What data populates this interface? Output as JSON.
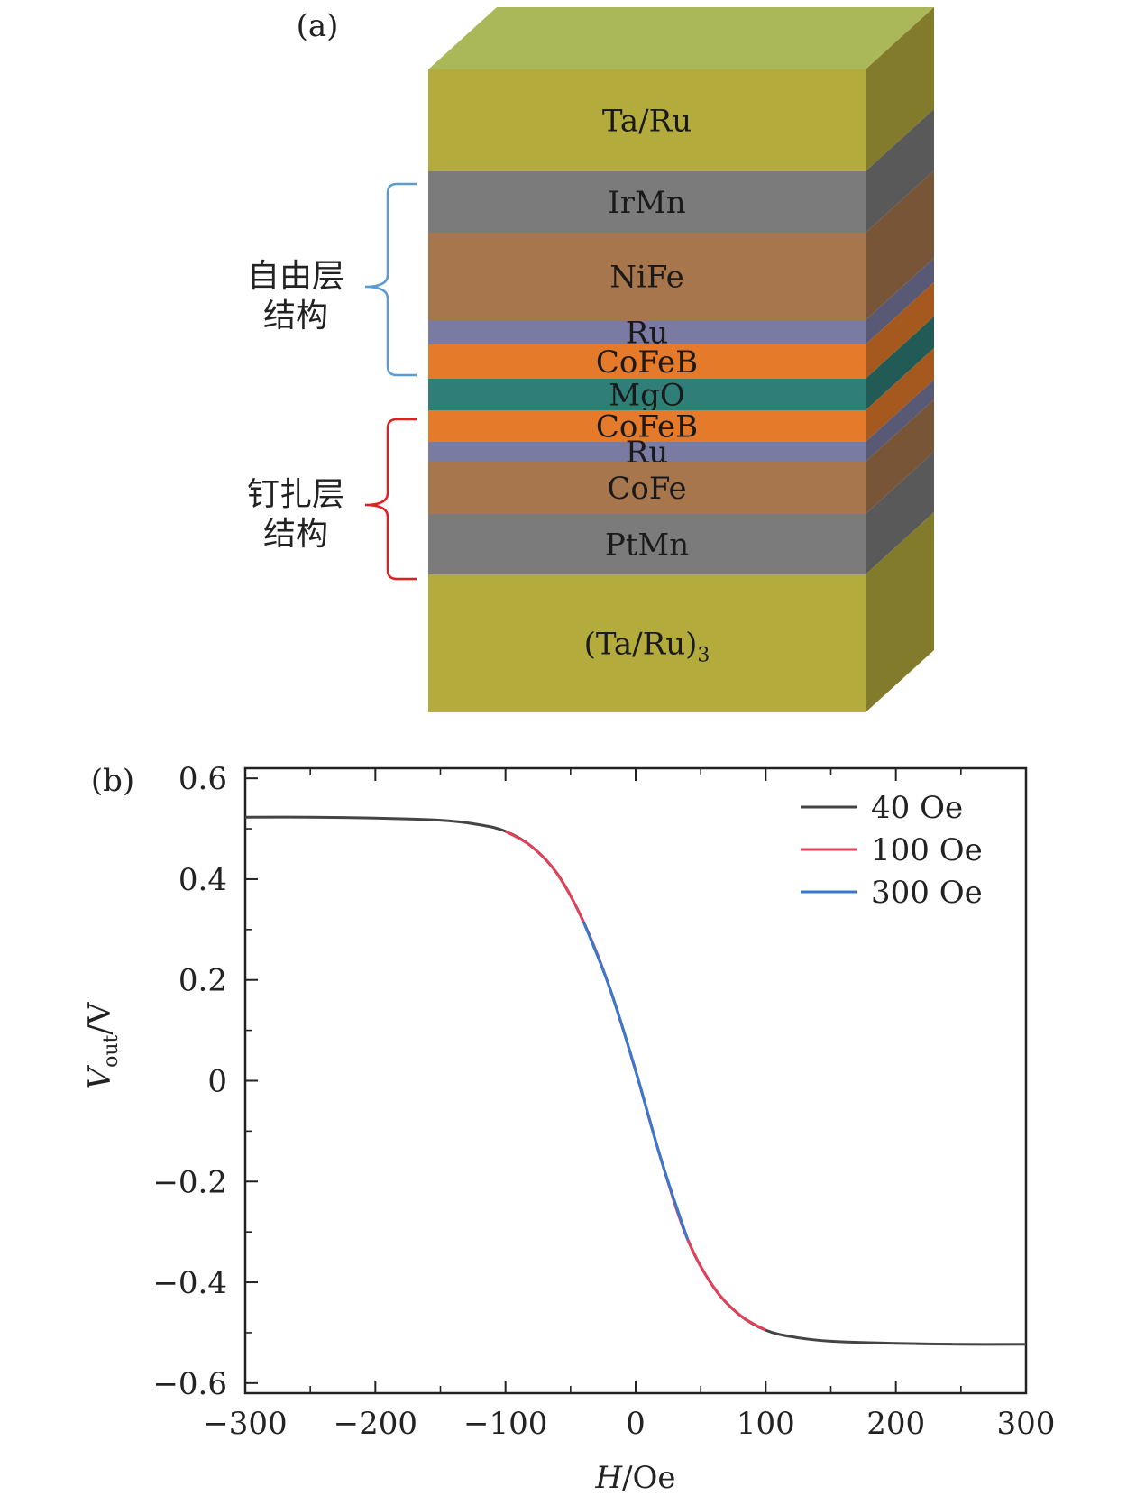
{
  "panel_a": {
    "label": "(a)",
    "free_layer_label": [
      "自由层",
      "结构"
    ],
    "pinned_layer_label": [
      "钉扎层",
      "结构"
    ],
    "layers": [
      {
        "name": "Ta/Ru",
        "color": "#b3ab3c"
      },
      {
        "name": "IrMn",
        "color": "#7b7b7b"
      },
      {
        "name": "NiFe",
        "color": "#a8764d"
      },
      {
        "name": "Ru",
        "color": "#7a7ba3"
      },
      {
        "name": "CoFeB",
        "color": "#e57b2a"
      },
      {
        "name": "MgO",
        "color": "#2f7f78"
      },
      {
        "name": "CoFeB",
        "color": "#e57b2a"
      },
      {
        "name": "Ru",
        "color": "#7a7ba3"
      },
      {
        "name": "CoFe",
        "color": "#a8764d"
      },
      {
        "name": "PtMn",
        "color": "#7b7b7b"
      },
      {
        "name": "(Ta/Ru)3",
        "color": "#b3ab3c"
      }
    ],
    "brace_colors": {
      "free": "#4a8fc4",
      "pinned": "#e02020"
    }
  },
  "panel_b": {
    "label": "(b)"
  },
  "chart_data": {
    "type": "line",
    "xlabel": "H/Oe",
    "ylabel": "Vout/V",
    "xlim": [
      -300,
      300
    ],
    "ylim": [
      -0.62,
      0.62
    ],
    "xticks": [
      -300,
      -200,
      -100,
      0,
      100,
      200,
      300
    ],
    "xtick_labels": [
      "−300",
      "−200",
      "−100",
      "0",
      "100",
      "200",
      "300"
    ],
    "yticks": [
      0.6,
      0.4,
      0.2,
      0,
      -0.2,
      -0.4,
      -0.6
    ],
    "ytick_labels": [
      "0.6",
      "0.4",
      "0.2",
      "0",
      "−0.2",
      "−0.4",
      "−0.6"
    ],
    "legend_position": "top-right",
    "series": [
      {
        "name": "40 Oe",
        "color": "#444444",
        "x": [
          -300,
          -250,
          -200,
          -150,
          -120,
          -100,
          -80,
          -60,
          -40,
          -20,
          0,
          20,
          40,
          60,
          80,
          100,
          120,
          150,
          200,
          250,
          300
        ],
        "y": [
          0.523,
          0.523,
          0.521,
          0.517,
          0.508,
          0.495,
          0.465,
          0.41,
          0.315,
          0.185,
          0.02,
          -0.16,
          -0.315,
          -0.41,
          -0.465,
          -0.495,
          -0.508,
          -0.517,
          -0.521,
          -0.523,
          -0.523
        ]
      },
      {
        "name": "100 Oe",
        "color": "#e0405a",
        "x": [
          -100,
          -80,
          -60,
          -40,
          -20,
          0,
          20,
          40,
          60,
          80,
          100
        ],
        "y": [
          0.495,
          0.465,
          0.41,
          0.315,
          0.185,
          0.02,
          -0.16,
          -0.315,
          -0.41,
          -0.465,
          -0.495
        ]
      },
      {
        "name": "300 Oe",
        "color": "#3a78d0",
        "x": [
          -40,
          -20,
          0,
          20,
          40
        ],
        "y": [
          0.315,
          0.185,
          0.02,
          -0.16,
          -0.315
        ]
      }
    ]
  }
}
